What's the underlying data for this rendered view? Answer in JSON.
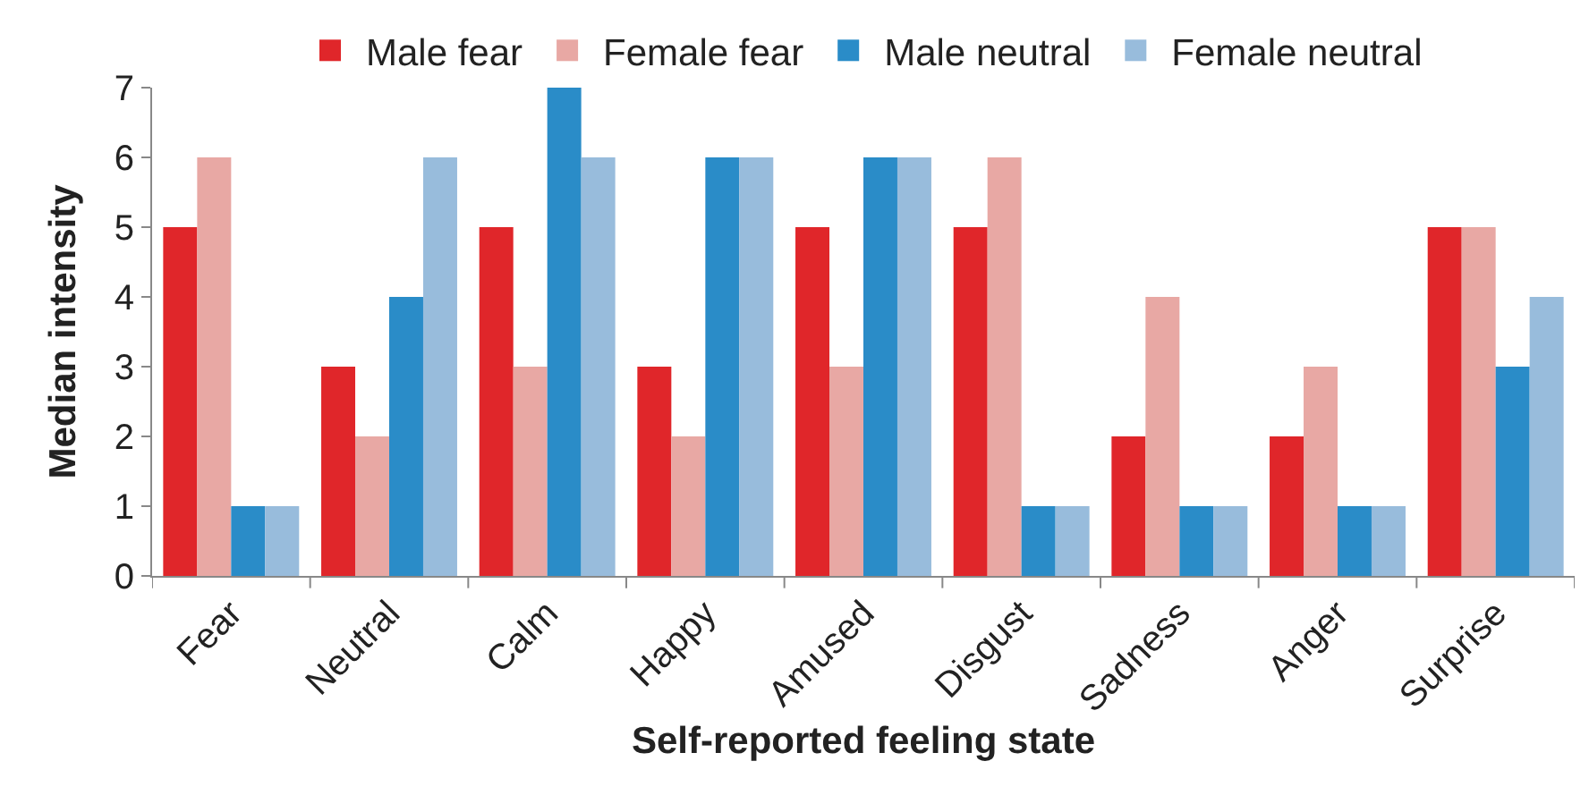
{
  "chart_data": {
    "type": "bar",
    "xlabel": "Self-reported feeling state",
    "ylabel": "Median intensity",
    "categories": [
      "Fear",
      "Neutral",
      "Calm",
      "Happy",
      "Amused",
      "Disgust",
      "Sadness",
      "Anger",
      "Surprise"
    ],
    "series": [
      {
        "name": "Male fear",
        "color": "#e0262a",
        "values": [
          5,
          3,
          5,
          3,
          5,
          5,
          2,
          2,
          5
        ]
      },
      {
        "name": "Female fear",
        "color": "#e8a8a4",
        "values": [
          6,
          2,
          3,
          2,
          3,
          6,
          4,
          3,
          5
        ]
      },
      {
        "name": "Male neutral",
        "color": "#2a8cc8",
        "values": [
          1,
          4,
          7,
          6,
          6,
          1,
          1,
          1,
          3
        ]
      },
      {
        "name": "Female neutral",
        "color": "#98bcdc",
        "values": [
          1,
          6,
          6,
          6,
          6,
          1,
          1,
          1,
          4
        ]
      }
    ],
    "ylim": [
      0,
      7
    ],
    "yticks": [
      0,
      1,
      2,
      3,
      4,
      5,
      6,
      7
    ],
    "legend": "top"
  }
}
